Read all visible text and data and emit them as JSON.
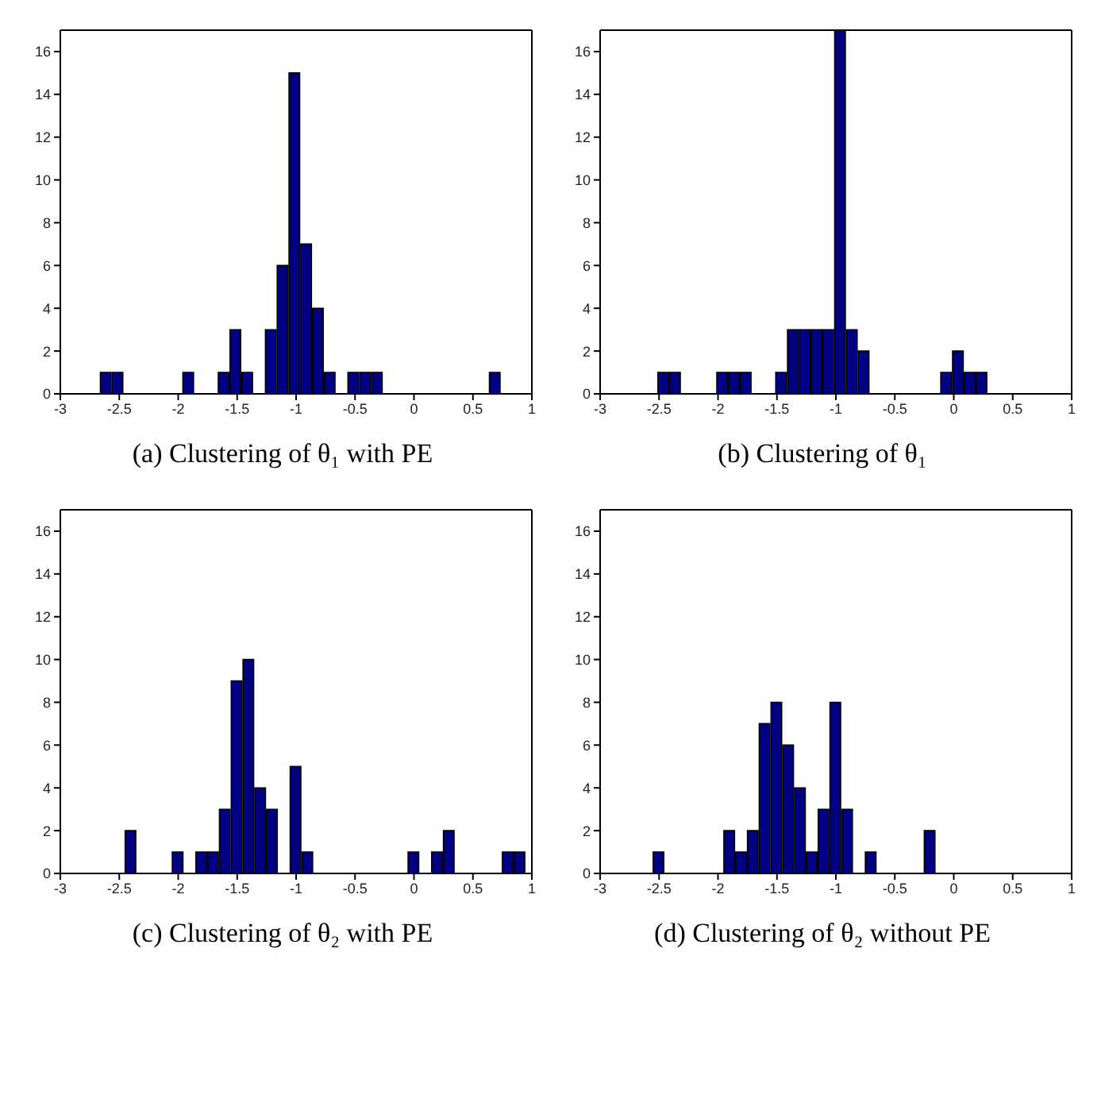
{
  "chart_data": [
    {
      "type": "histogram",
      "title": "(a) Clustering of θ₁ with PE",
      "color": "#000080",
      "xlim": [
        -3,
        1
      ],
      "xticks": [
        -3,
        -2.5,
        -2,
        -1.5,
        -1,
        -0.5,
        0,
        0.5,
        1
      ],
      "ylim": [
        0,
        17
      ],
      "yticks": [
        0,
        2,
        4,
        6,
        8,
        10,
        12,
        14,
        16
      ],
      "bins": [
        -2.66,
        -2.56,
        -2.46,
        -2.36,
        -2.26,
        -2.16,
        -2.06,
        -1.96,
        -1.86,
        -1.76,
        -1.66,
        -1.56,
        -1.46,
        -1.36,
        -1.26,
        -1.16,
        -1.06,
        -0.96,
        -0.86,
        -0.76,
        -0.66,
        -0.56,
        -0.46,
        -0.36,
        -0.26,
        -0.16,
        -0.06,
        0.04,
        0.14,
        0.24,
        0.34,
        0.44,
        0.54,
        0.64,
        0.74
      ],
      "values": [
        1,
        1,
        0,
        0,
        0,
        0,
        0,
        1,
        0,
        0,
        1,
        3,
        1,
        0,
        3,
        6,
        15,
        7,
        4,
        1,
        0,
        1,
        1,
        1,
        0,
        0,
        0,
        0,
        0,
        0,
        0,
        0,
        0,
        1
      ]
    },
    {
      "type": "histogram",
      "title": "(b) Clustering of θ₁",
      "color": "#000080",
      "xlim": [
        -3,
        1
      ],
      "xticks": [
        -3,
        -2.5,
        -2,
        -1.5,
        -1,
        -0.5,
        0,
        0.5,
        1
      ],
      "ylim": [
        0,
        17
      ],
      "yticks": [
        0,
        2,
        4,
        6,
        8,
        10,
        12,
        14,
        16
      ],
      "bins": [
        -2.51,
        -2.41,
        -2.31,
        -2.21,
        -2.11,
        -2.01,
        -1.91,
        -1.81,
        -1.71,
        -1.61,
        -1.51,
        -1.41,
        -1.31,
        -1.21,
        -1.11,
        -1.01,
        -0.91,
        -0.81,
        -0.71,
        -0.61,
        -0.51,
        -0.41,
        -0.31,
        -0.21,
        -0.11,
        -0.01,
        0.09,
        0.19,
        0.29
      ],
      "values": [
        1,
        1,
        0,
        0,
        0,
        1,
        1,
        1,
        0,
        0,
        1,
        3,
        3,
        3,
        3,
        17,
        3,
        2,
        0,
        0,
        0,
        0,
        0,
        0,
        1,
        2,
        1,
        1
      ]
    },
    {
      "type": "histogram",
      "title": "(c) Clustering of θ₂ with PE",
      "color": "#000080",
      "xlim": [
        -3,
        1
      ],
      "xticks": [
        -3,
        -2.5,
        -2,
        -1.5,
        -1,
        -0.5,
        0,
        0.5,
        1
      ],
      "ylim": [
        0,
        17
      ],
      "yticks": [
        0,
        2,
        4,
        6,
        8,
        10,
        12,
        14,
        16
      ],
      "bins": [
        -2.45,
        -2.35,
        -2.25,
        -2.15,
        -2.05,
        -1.95,
        -1.85,
        -1.75,
        -1.65,
        -1.55,
        -1.45,
        -1.35,
        -1.25,
        -1.15,
        -1.05,
        -0.95,
        -0.85,
        -0.75,
        -0.65,
        -0.55,
        -0.45,
        -0.35,
        -0.25,
        -0.15,
        -0.05,
        0.05,
        0.15,
        0.25,
        0.35,
        0.45,
        0.55,
        0.65,
        0.75,
        0.85,
        0.95
      ],
      "values": [
        2,
        0,
        0,
        0,
        1,
        0,
        1,
        1,
        3,
        9,
        10,
        4,
        3,
        0,
        5,
        1,
        0,
        0,
        0,
        0,
        0,
        0,
        0,
        0,
        1,
        0,
        1,
        2,
        0,
        0,
        0,
        0,
        1,
        1
      ]
    },
    {
      "type": "histogram",
      "title": "(d) Clustering of θ₂ without PE",
      "color": "#000080",
      "xlim": [
        -3,
        1
      ],
      "xticks": [
        -3,
        -2.5,
        -2,
        -1.5,
        -1,
        -0.5,
        0,
        0.5,
        1
      ],
      "ylim": [
        0,
        17
      ],
      "yticks": [
        0,
        2,
        4,
        6,
        8,
        10,
        12,
        14,
        16
      ],
      "bins": [
        -2.55,
        -2.45,
        -2.35,
        -2.25,
        -2.15,
        -2.05,
        -1.95,
        -1.85,
        -1.75,
        -1.65,
        -1.55,
        -1.45,
        -1.35,
        -1.25,
        -1.15,
        -1.05,
        -0.95,
        -0.85,
        -0.75,
        -0.65,
        -0.55,
        -0.45,
        -0.35,
        -0.25,
        -0.15
      ],
      "values": [
        1,
        0,
        0,
        0,
        0,
        0,
        2,
        1,
        2,
        7,
        8,
        6,
        4,
        1,
        3,
        8,
        3,
        0,
        1,
        0,
        0,
        0,
        0,
        2
      ]
    }
  ]
}
